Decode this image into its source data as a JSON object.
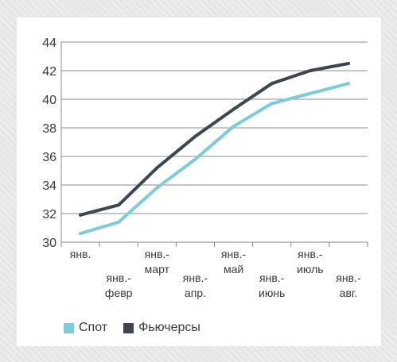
{
  "chart_data": {
    "type": "line",
    "categories": [
      [
        "янв."
      ],
      [
        "янв.-",
        "февр"
      ],
      [
        "янв.-",
        "март"
      ],
      [
        "янв.-",
        "апр."
      ],
      [
        "янв.-",
        "май"
      ],
      [
        "янв.-",
        "июнь"
      ],
      [
        "янв.-",
        "июль"
      ],
      [
        "янв.-",
        "авг."
      ]
    ],
    "series": [
      {
        "name": "Спот",
        "color": "#7ecbd6",
        "values": [
          30.6,
          31.4,
          33.8,
          35.8,
          38.1,
          39.7,
          40.4,
          41.1
        ]
      },
      {
        "name": "Фьючерсы",
        "color": "#3a4650",
        "values": [
          31.9,
          32.6,
          35.2,
          37.4,
          39.3,
          41.1,
          42.0,
          42.5
        ]
      }
    ],
    "ylim": [
      30,
      44
    ],
    "yticks": [
      30,
      32,
      34,
      36,
      38,
      40,
      42,
      44
    ],
    "grid": true,
    "legend_position": "bottom-left"
  }
}
